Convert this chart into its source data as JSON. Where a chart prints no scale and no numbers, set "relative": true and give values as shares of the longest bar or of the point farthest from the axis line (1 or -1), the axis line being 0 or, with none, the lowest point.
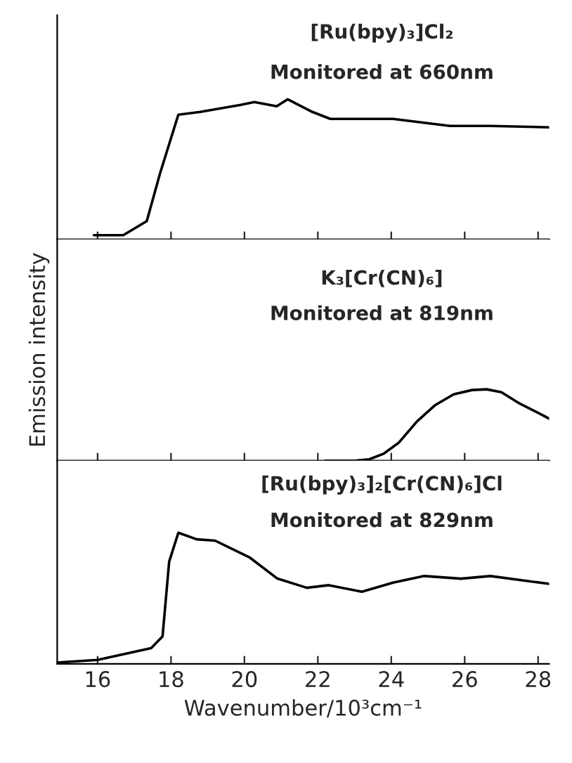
{
  "chart_data": [
    {
      "type": "line",
      "relative": true,
      "xlim": [
        14.9,
        28.3
      ],
      "xticks": [
        16,
        18,
        20,
        22,
        24,
        26,
        28
      ],
      "tick_labels": false,
      "annotations": [
        "[Ru(bpy)₃]Cl₂",
        "Monitored at 660nm"
      ],
      "x": [
        15.9,
        16.0,
        16.7,
        17.34,
        17.7,
        18.2,
        18.8,
        19.9,
        20.27,
        20.88,
        21.18,
        21.85,
        22.34,
        24.05,
        25.6,
        26.7,
        28.3
      ],
      "series": [
        {
          "color": "#000000",
          "values": [
            0.03,
            0.03,
            0.03,
            0.13,
            0.47,
            0.89,
            0.91,
            0.96,
            0.98,
            0.95,
            1.0,
            0.91,
            0.86,
            0.86,
            0.81,
            0.81,
            0.8
          ]
        }
      ]
    },
    {
      "type": "line",
      "relative": true,
      "xlim": [
        14.9,
        28.3
      ],
      "xticks": [
        16,
        18,
        20,
        22,
        24,
        26,
        28
      ],
      "tick_labels": false,
      "ylabel": "Emission intensity",
      "annotations": [
        "K₃[Cr(CN)₆]",
        "Monitored at 819nm"
      ],
      "x": [
        22.2,
        23.0,
        23.4,
        23.8,
        24.2,
        24.7,
        25.2,
        25.7,
        26.2,
        26.6,
        27.0,
        27.5,
        28.0,
        28.3
      ],
      "series": [
        {
          "color": "#000000",
          "values": [
            0.0,
            0.0,
            0.02,
            0.1,
            0.25,
            0.55,
            0.78,
            0.93,
            0.99,
            1.0,
            0.96,
            0.8,
            0.67,
            0.59
          ]
        }
      ]
    },
    {
      "type": "line",
      "relative": true,
      "xlim": [
        14.9,
        28.3
      ],
      "xticks": [
        16,
        18,
        20,
        22,
        24,
        26,
        28
      ],
      "tick_labels": "x",
      "xlabel": "Wavenumber/10³cm⁻¹",
      "annotations": [
        "[Ru(bpy)₃]₂[Cr(CN)₆]Cl",
        "Monitored at 829nm"
      ],
      "x": [
        14.9,
        16.0,
        17.46,
        17.77,
        17.95,
        18.2,
        18.7,
        19.2,
        20.15,
        20.9,
        21.7,
        22.3,
        23.2,
        24.05,
        24.9,
        25.9,
        26.7,
        27.5,
        28.3
      ],
      "series": [
        {
          "color": "#000000",
          "values": [
            0.01,
            0.03,
            0.12,
            0.21,
            0.78,
            1.0,
            0.95,
            0.94,
            0.81,
            0.65,
            0.58,
            0.6,
            0.55,
            0.62,
            0.67,
            0.65,
            0.67,
            0.64,
            0.61
          ]
        }
      ]
    }
  ]
}
